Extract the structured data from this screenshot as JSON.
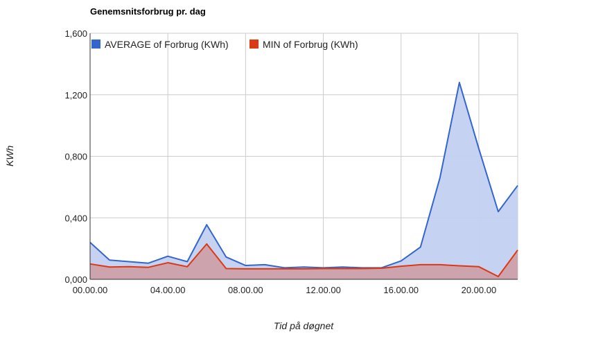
{
  "chart_data": {
    "type": "area",
    "title": "Genemsnitsforbrug pr. dag",
    "xlabel": "Tid på døgnet",
    "ylabel": "KWh",
    "ylim": [
      0,
      1.6
    ],
    "y_ticks": [
      "0,000",
      "0,400",
      "0,800",
      "1,200",
      "1,600"
    ],
    "x_ticks": [
      "00.00.00",
      "04.00.00",
      "08.00.00",
      "12.00.00",
      "16.00.00",
      "20.00.00"
    ],
    "x": [
      0,
      1,
      2,
      3,
      4,
      5,
      6,
      7,
      8,
      9,
      10,
      11,
      12,
      13,
      14,
      15,
      16,
      17,
      18,
      19,
      20,
      21,
      22
    ],
    "grid": true,
    "legend_position": "top-left",
    "series": [
      {
        "name": "AVERAGE of Forbrug (KWh)",
        "color": "#3366cc",
        "fill": "#c2d0f0",
        "values": [
          0.24,
          0.125,
          0.115,
          0.105,
          0.15,
          0.115,
          0.355,
          0.145,
          0.09,
          0.095,
          0.075,
          0.08,
          0.075,
          0.08,
          0.075,
          0.075,
          0.12,
          0.21,
          0.66,
          1.28,
          0.85,
          0.44,
          0.61
        ]
      },
      {
        "name": "MIN of Forbrug (KWh)",
        "color": "#dc3912",
        "fill": "#cd9ea6",
        "values": [
          0.1,
          0.08,
          0.082,
          0.078,
          0.108,
          0.082,
          0.23,
          0.07,
          0.068,
          0.068,
          0.068,
          0.068,
          0.07,
          0.07,
          0.07,
          0.072,
          0.085,
          0.095,
          0.095,
          0.088,
          0.082,
          0.018,
          0.19
        ]
      }
    ]
  }
}
